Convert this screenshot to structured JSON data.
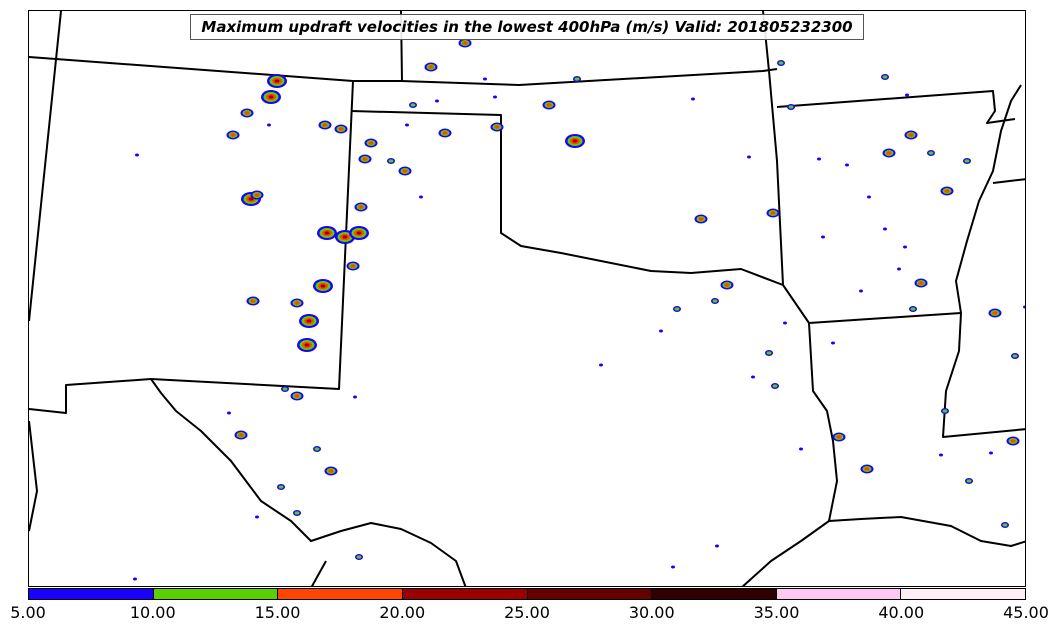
{
  "title": "Maximum updraft velocities in the lowest 400hPa (m/s) Valid: 201805232300",
  "colorbar": {
    "colors": [
      "#1a00ff",
      "#5ad000",
      "#ff4500",
      "#9b0000",
      "#650000",
      "#2e0000",
      "#ffc8f0",
      "#fff0f8"
    ],
    "labels": [
      "5.00",
      "10.00",
      "15.00",
      "20.00",
      "25.00",
      "30.00",
      "35.00",
      "40.00",
      "45.00"
    ]
  }
}
